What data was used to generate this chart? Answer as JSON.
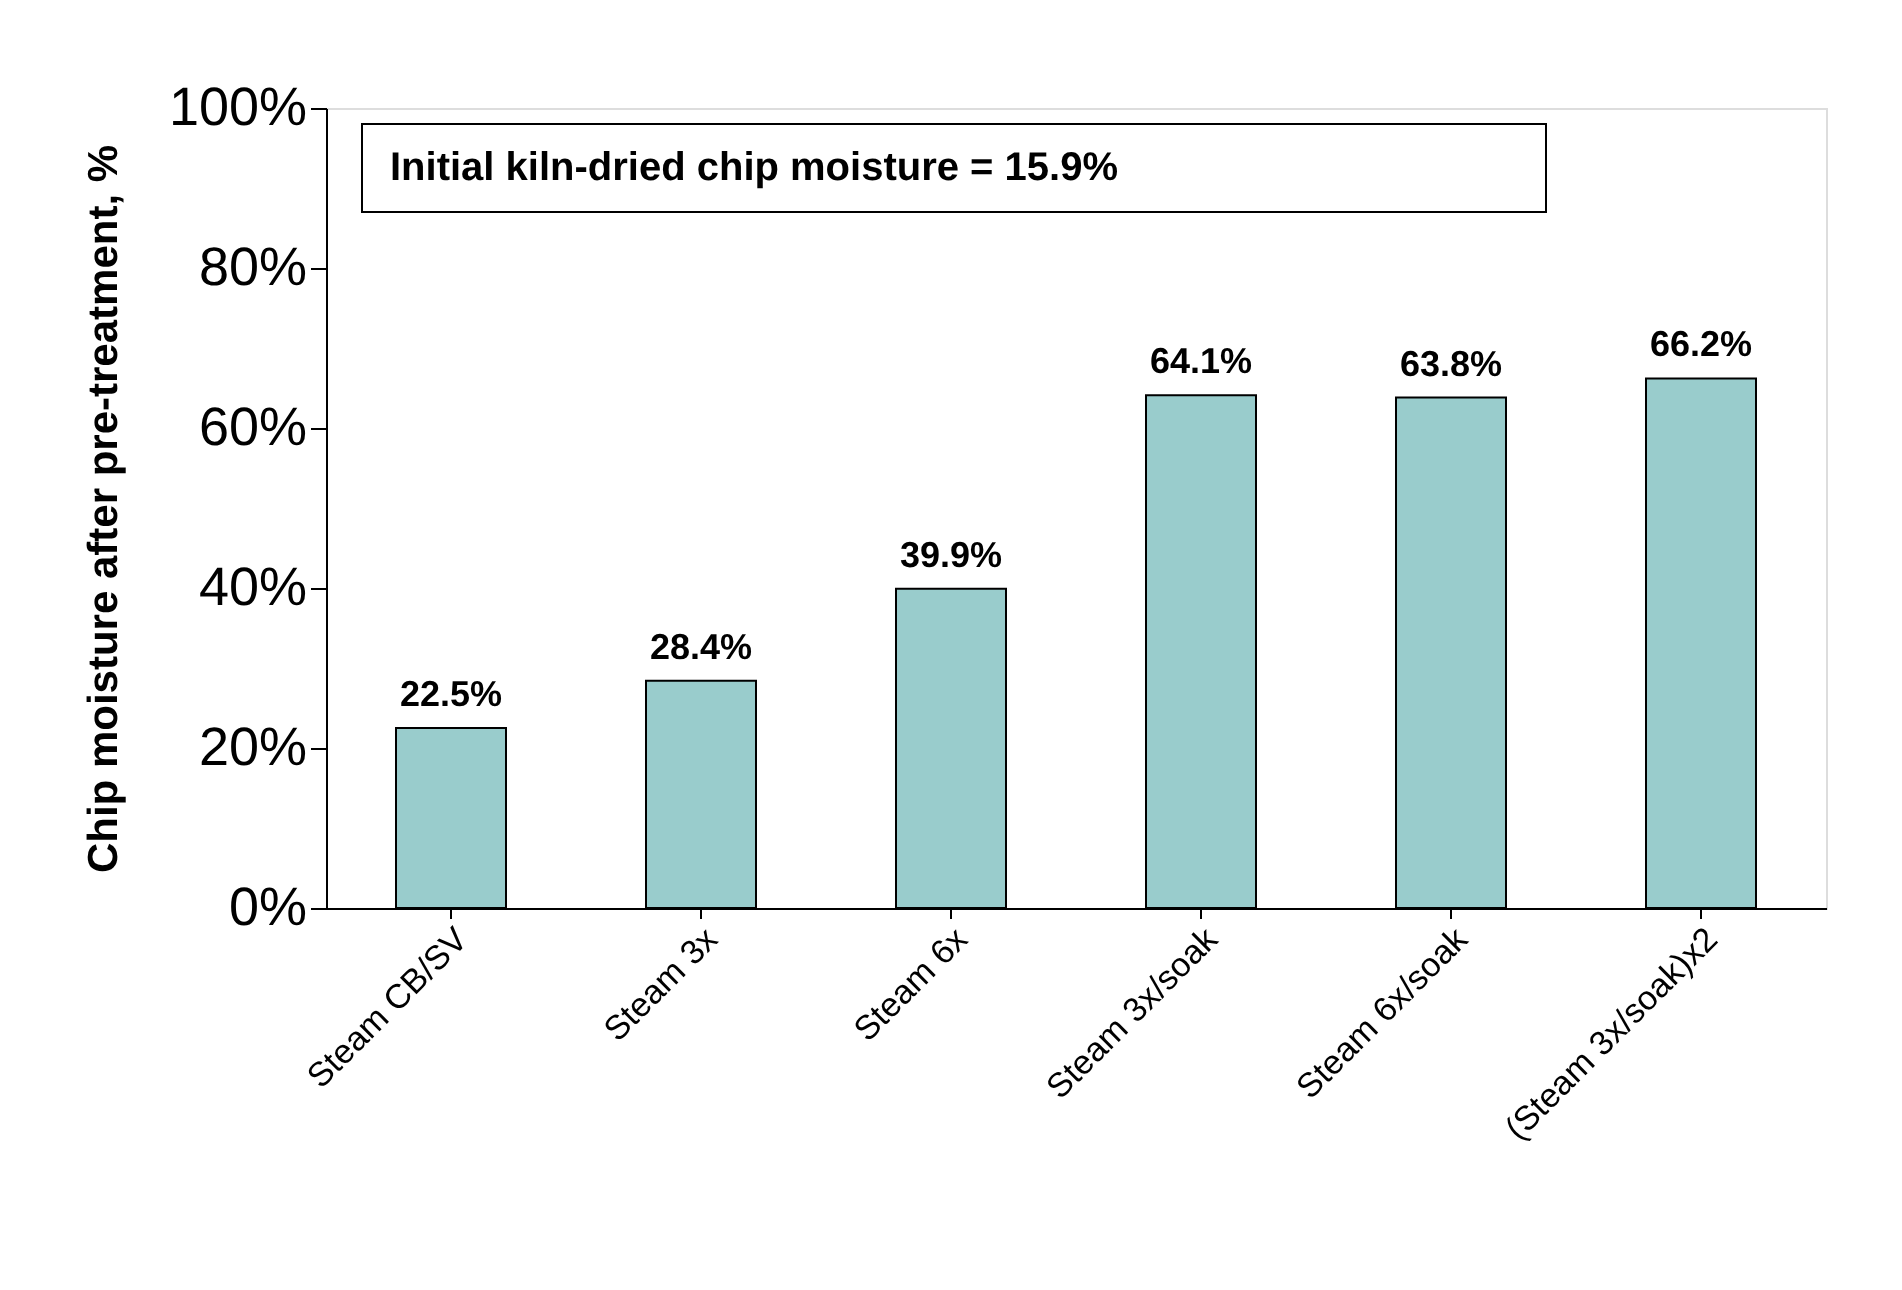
{
  "chart_data": {
    "type": "bar",
    "ylabel": "Chip moisture after pre-treatment, %",
    "categories": [
      "Steam CB/SV",
      "Steam 3x",
      "Steam 6x",
      "Steam 3x/soak",
      "Steam 6x/soak",
      "(Steam 3x/soak)x2"
    ],
    "values": [
      22.5,
      28.4,
      39.9,
      64.1,
      63.8,
      66.2
    ],
    "value_labels": [
      "22.5%",
      "28.4%",
      "39.9%",
      "64.1%",
      "63.8%",
      "66.2%"
    ],
    "color": "#99cccc",
    "ylim": [
      0,
      100
    ],
    "yticks": [
      {
        "value": 0,
        "label": "0%"
      },
      {
        "value": 20,
        "label": "20%"
      },
      {
        "value": 40,
        "label": "40%"
      },
      {
        "value": 60,
        "label": "60%"
      },
      {
        "value": 80,
        "label": "80%"
      },
      {
        "value": 100,
        "label": "100%"
      }
    ],
    "annotations": [
      "Initial kiln-dried chip moisture = 15.9%"
    ],
    "grid": false
  }
}
